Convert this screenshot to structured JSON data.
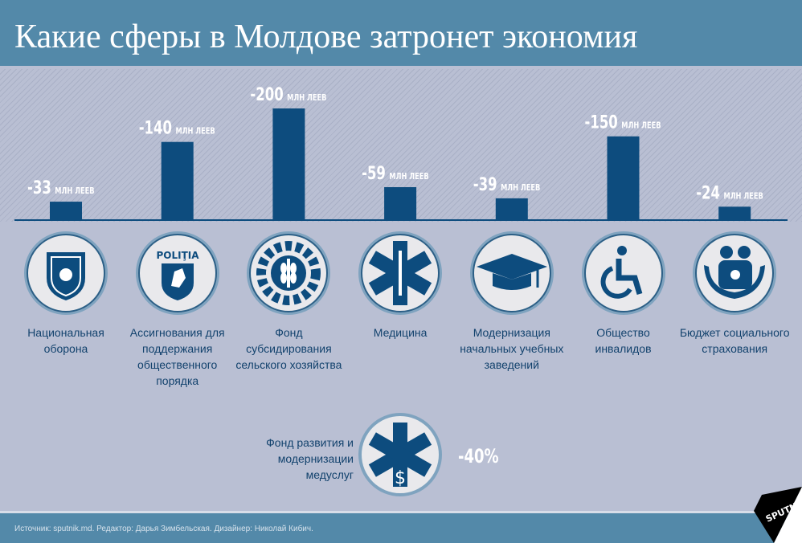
{
  "header": {
    "title": "Какие сферы в Молдове затронет экономия"
  },
  "chart_data": {
    "type": "bar",
    "title": "Какие сферы в Молдове затронет экономия",
    "unit": "млн леев",
    "categories": [
      "Национальная оборона",
      "Ассигнования для поддержания общественного порядка",
      "Фонд субсидирования сельского хозяйства",
      "Медицина",
      "Модернизация начальных учебных заведений",
      "Общество инвалидов",
      "Бюджет социального страхования"
    ],
    "values": [
      -33,
      -140,
      -200,
      -59,
      -39,
      -150,
      -24
    ],
    "value_labels": [
      "-33",
      "-140",
      "-200",
      "-59",
      "-39",
      "-150",
      "-24"
    ],
    "icons": [
      "coat-of-arms-icon",
      "police-shield-icon",
      "agriculture-gear-icon",
      "medical-star-icon",
      "graduation-cap-icon",
      "wheelchair-icon",
      "family-hands-icon"
    ],
    "bar_color": "#0d4c7e"
  },
  "extra": {
    "label": "Фонд развития и модернизации медуслуг",
    "value": "-40%",
    "icon": "medical-star-dollar-icon"
  },
  "icon_text": {
    "police": "POLIŢIA"
  },
  "footer": {
    "source": "Источник: sputnik.md. Редактор: Дарья Зимбельская. Дизайнер: Николай Кибич.",
    "logo": "SPUTNIK"
  }
}
